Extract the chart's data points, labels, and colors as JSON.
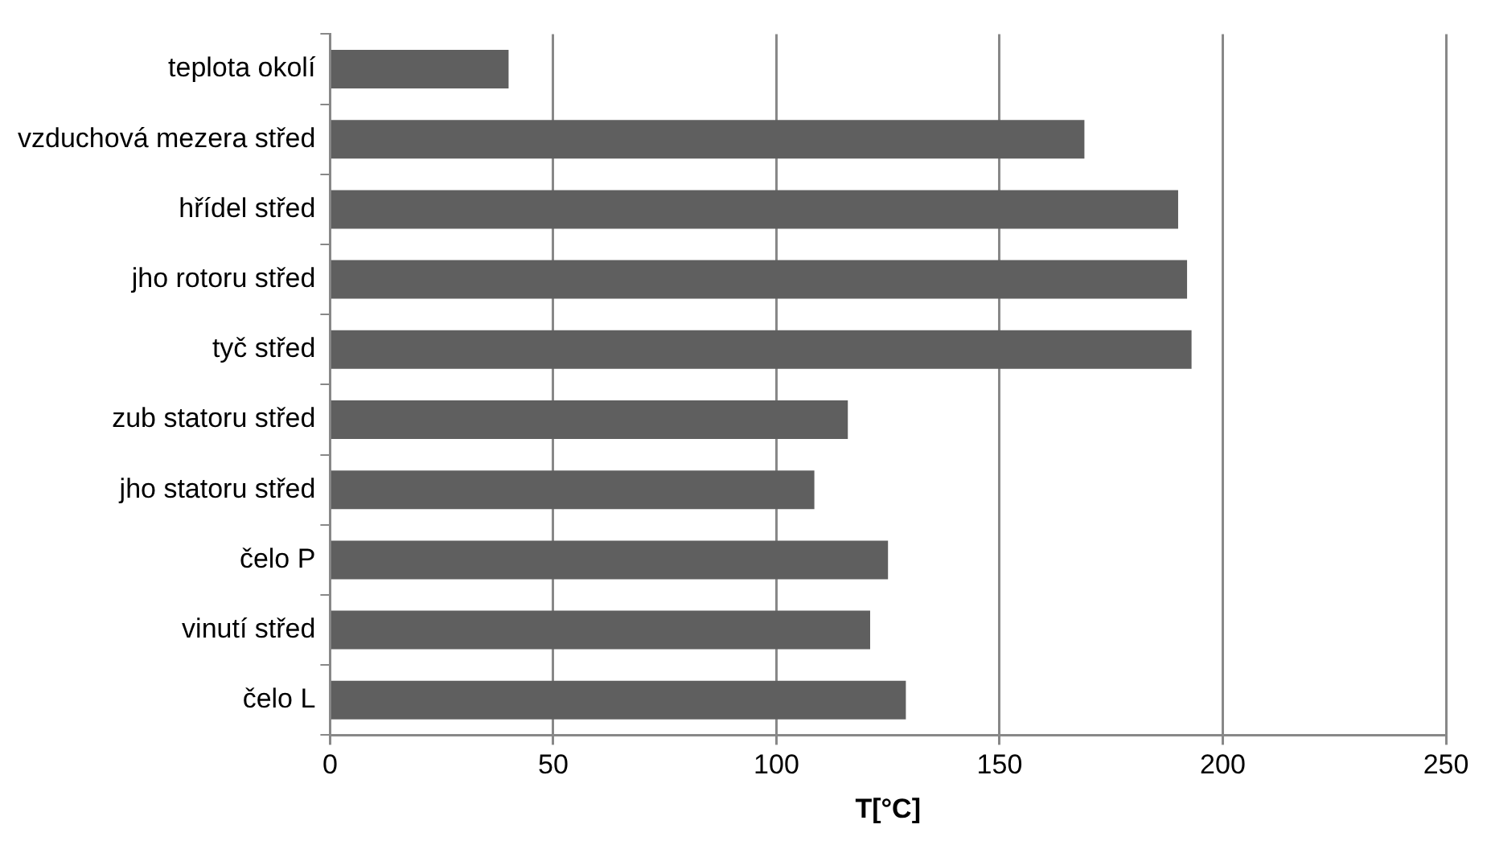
{
  "chart_data": {
    "type": "bar",
    "orientation": "horizontal",
    "xlabel": "T[°C]",
    "categories": [
      "teplota okolí",
      "vzduchová mezera střed",
      "hřídel střed",
      "jho rotoru střed",
      "tyč střed",
      "zub statoru střed",
      "jho statoru střed",
      "čelo P",
      "vinutí střed",
      "čelo L"
    ],
    "values": [
      40,
      169,
      190,
      192,
      193,
      116,
      108.5,
      125,
      121,
      129
    ],
    "color": "#5f5f5f",
    "xlim": [
      0,
      250
    ],
    "xticks": [
      0,
      50,
      100,
      150,
      200,
      250
    ],
    "grid": "x",
    "legend": false
  }
}
